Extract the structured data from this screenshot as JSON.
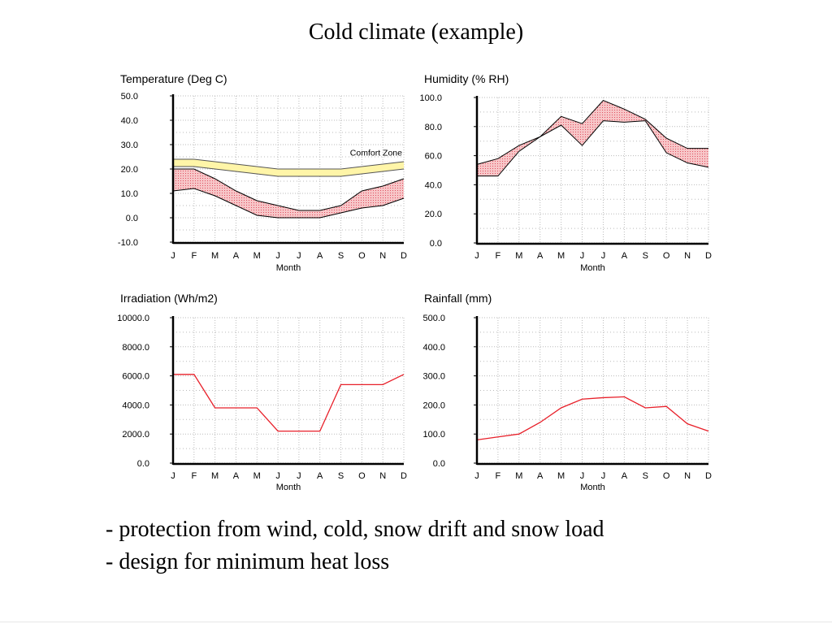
{
  "page": {
    "title": "Cold climate (example)",
    "bullets": [
      "- protection from wind, cold, snow drift and snow load",
      "- design for minimum heat loss"
    ]
  },
  "colors": {
    "grid": "#bbbbbb",
    "axis": "#000000",
    "line": "#e8202a",
    "band_fill": "#f7c6c8",
    "comfort_fill": "#fff5a8",
    "comfort_edge": "#555555"
  },
  "chart_data": [
    {
      "type": "area",
      "title": "Temperature (Deg C)",
      "xlabel": "Month",
      "ylabel": "",
      "categories": [
        "J",
        "F",
        "M",
        "A",
        "M",
        "J",
        "J",
        "A",
        "S",
        "O",
        "N",
        "D"
      ],
      "ylim": [
        -10,
        50
      ],
      "yticks": [
        "50.0",
        "40.0",
        "30.0",
        "20.0",
        "10.0",
        "0.0",
        "-10.0"
      ],
      "grid": true,
      "series": [
        {
          "role": "band-upper",
          "values": [
            20,
            20,
            16,
            11,
            7,
            5,
            3,
            3,
            5,
            11,
            13,
            16
          ]
        },
        {
          "role": "band-lower",
          "values": [
            11,
            12,
            9,
            5,
            1,
            0,
            0,
            0,
            2,
            4,
            5,
            8
          ]
        },
        {
          "role": "comfort-upper",
          "values": [
            24,
            24,
            23,
            22,
            21,
            20,
            20,
            20,
            20,
            21,
            22,
            23
          ]
        },
        {
          "role": "comfort-lower",
          "values": [
            21,
            21,
            20,
            19,
            18,
            17,
            17,
            17,
            17,
            18,
            19,
            20
          ]
        }
      ],
      "annotations": [
        "Comfort Zone"
      ]
    },
    {
      "type": "area",
      "title": "Humidity (% RH)",
      "xlabel": "Month",
      "ylabel": "",
      "categories": [
        "J",
        "F",
        "M",
        "A",
        "M",
        "J",
        "J",
        "A",
        "S",
        "O",
        "N",
        "D"
      ],
      "ylim": [
        0,
        100
      ],
      "yticks": [
        "100.0",
        "80.0",
        "60.0",
        "40.0",
        "20.0",
        "0.0"
      ],
      "grid": true,
      "series": [
        {
          "role": "band-upper",
          "values": [
            54,
            58,
            67,
            73,
            87,
            82,
            98,
            92,
            85,
            72,
            65,
            65
          ]
        },
        {
          "role": "band-lower",
          "values": [
            46,
            46,
            63,
            73,
            81,
            67,
            84,
            83,
            84,
            62,
            55,
            52
          ]
        }
      ]
    },
    {
      "type": "line",
      "title": "Irradiation (Wh/m2)",
      "xlabel": "Month",
      "ylabel": "",
      "categories": [
        "J",
        "F",
        "M",
        "A",
        "M",
        "J",
        "J",
        "A",
        "S",
        "O",
        "N",
        "D"
      ],
      "ylim": [
        0,
        10000
      ],
      "yticks": [
        "10000.0",
        "8000.0",
        "6000.0",
        "4000.0",
        "2000.0",
        "0.0"
      ],
      "grid": true,
      "series": [
        {
          "values": [
            6100,
            6100,
            3800,
            3800,
            3800,
            2200,
            2200,
            2200,
            5400,
            5400,
            5400,
            6100
          ]
        }
      ]
    },
    {
      "type": "line",
      "title": "Rainfall (mm)",
      "xlabel": "Month",
      "ylabel": "",
      "categories": [
        "J",
        "F",
        "M",
        "A",
        "M",
        "J",
        "J",
        "A",
        "S",
        "O",
        "N",
        "D"
      ],
      "ylim": [
        0,
        500
      ],
      "yticks": [
        "500.0",
        "400.0",
        "300.0",
        "200.0",
        "100.0",
        "0.0"
      ],
      "grid": true,
      "series": [
        {
          "values": [
            80,
            90,
            100,
            140,
            190,
            220,
            225,
            228,
            190,
            195,
            135,
            110
          ]
        }
      ]
    }
  ]
}
